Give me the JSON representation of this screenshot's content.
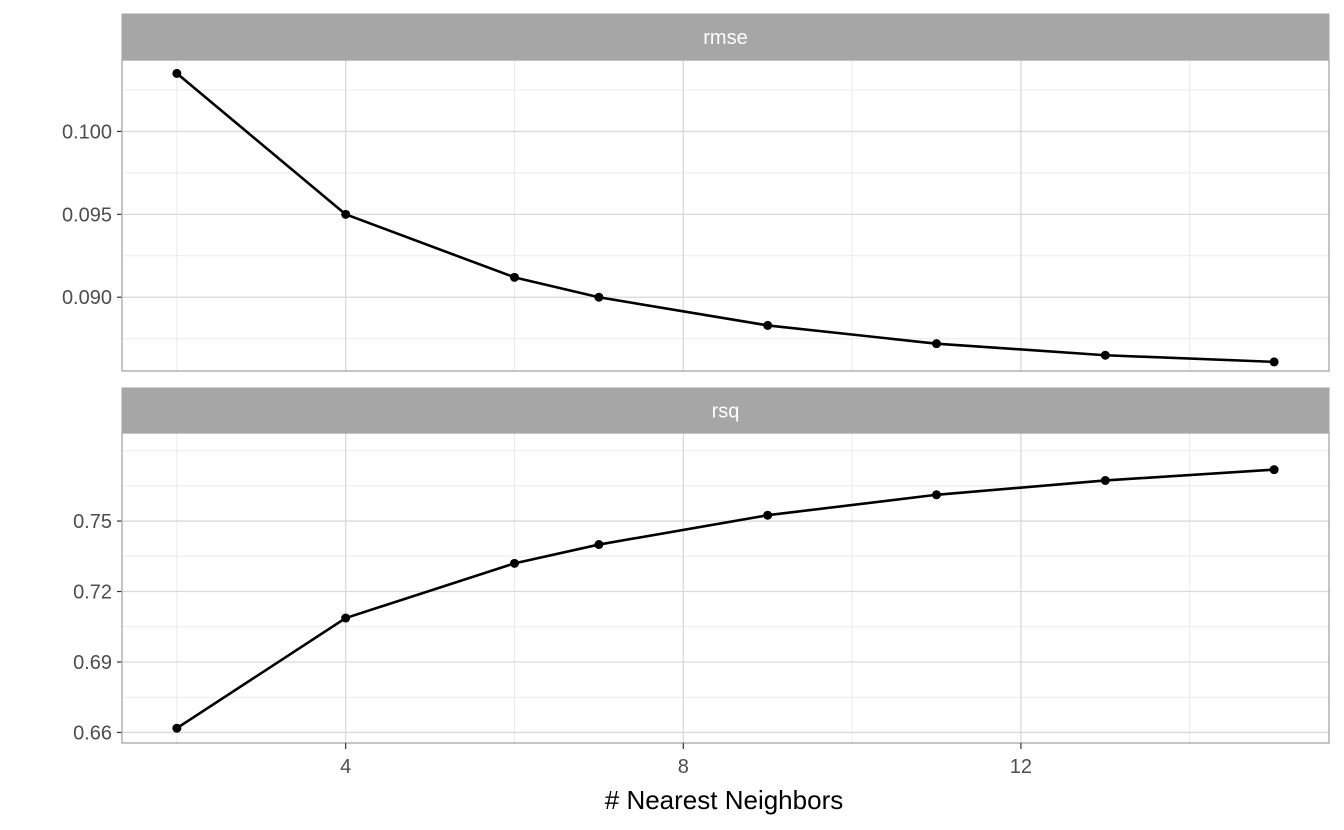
{
  "chart_data": {
    "type": "line",
    "layout": "faceted",
    "xlabel": "# Nearest Neighbors",
    "xlim": [
      1.35,
      15.65
    ],
    "x_ticks": [
      4,
      8,
      12
    ],
    "x_minor_ticks": [
      2,
      6,
      10,
      14
    ],
    "x": [
      2,
      4,
      6,
      7,
      9,
      11,
      13,
      15
    ],
    "series_color": "#000000",
    "panels": [
      {
        "name": "rmse",
        "ylim": [
          0.08555,
          0.10431
        ],
        "y_ticks": [
          0.09,
          0.095,
          0.1
        ],
        "y_tick_labels": [
          "0.090",
          "0.095",
          "0.100"
        ],
        "y_minor_ticks": [
          0.0875,
          0.0925,
          0.0975,
          0.1025
        ],
        "values": [
          0.1035,
          0.095,
          0.0912,
          0.09,
          0.0883,
          0.0872,
          0.0865,
          0.0861
        ]
      },
      {
        "name": "rsq",
        "ylim": [
          0.6555,
          0.7875
        ],
        "y_ticks": [
          0.66,
          0.69,
          0.72,
          0.75
        ],
        "y_tick_labels": [
          "0.66",
          "0.69",
          "0.72",
          "0.75"
        ],
        "y_minor_ticks": [
          0.675,
          0.705,
          0.735,
          0.765,
          0.78
        ],
        "values": [
          0.6618,
          0.7087,
          0.732,
          0.74,
          0.7525,
          0.7612,
          0.7673,
          0.7719
        ]
      }
    ]
  }
}
